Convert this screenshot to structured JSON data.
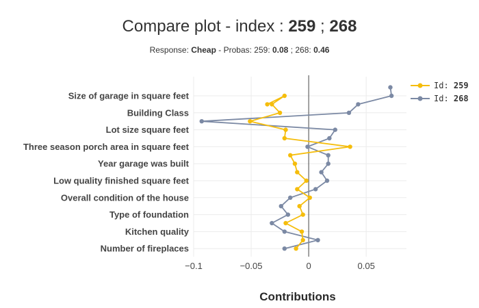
{
  "title": {
    "prefix": "Compare plot - index : ",
    "id_a": "259",
    "sep": " ; ",
    "id_b": "268"
  },
  "subtitle": {
    "response_label": "Response: ",
    "response_value": "Cheap",
    "probas_label": " - Probas: 259: ",
    "proba_a": "0.08",
    "probas_sep": " ; 268: ",
    "proba_b": "0.46"
  },
  "legend": {
    "prefix": "Id: ",
    "items": [
      "259",
      "268"
    ]
  },
  "colors": {
    "series_a": "#f5bd0c",
    "series_b": "#7b89a4",
    "grid": "#ebebeb",
    "zero_line": "#444444"
  },
  "chart_data": {
    "type": "line",
    "xlabel": "Contributions",
    "xlim": [
      -0.1,
      0.085
    ],
    "xticks": [
      -0.1,
      -0.05,
      0,
      0.05
    ],
    "xtick_labels": [
      "−0.1",
      "−0.05",
      "0",
      "0.05"
    ],
    "categories": [
      "Size of garage in square feet",
      "Building Class",
      "Lot size square feet",
      "Three season porch area in square feet",
      "Year garage was built",
      "Low quality finished square feet",
      "Overall condition of the house",
      "Type of foundation",
      "Kitchen quality",
      "Number of fireplaces"
    ],
    "series": [
      {
        "name": "259",
        "points": [
          {
            "x": -0.036,
            "y": 0.5
          },
          {
            "x": -0.021,
            "y": 0.0
          },
          {
            "x": -0.032,
            "y": 0.5
          },
          {
            "x": -0.025,
            "y": 1.0
          },
          {
            "x": -0.051,
            "y": 1.5
          },
          {
            "x": -0.02,
            "y": 2.0
          },
          {
            "x": -0.021,
            "y": 2.5
          },
          {
            "x": 0.036,
            "y": 3.0
          },
          {
            "x": -0.016,
            "y": 3.5
          },
          {
            "x": -0.012,
            "y": 4.0
          },
          {
            "x": -0.01,
            "y": 4.5
          },
          {
            "x": -0.002,
            "y": 5.0
          },
          {
            "x": -0.01,
            "y": 5.5
          },
          {
            "x": 0.001,
            "y": 6.0
          },
          {
            "x": -0.008,
            "y": 6.5
          },
          {
            "x": -0.005,
            "y": 7.0
          },
          {
            "x": -0.02,
            "y": 7.5
          },
          {
            "x": -0.006,
            "y": 8.0
          },
          {
            "x": -0.005,
            "y": 8.5
          },
          {
            "x": -0.011,
            "y": 9.0
          }
        ]
      },
      {
        "name": "268",
        "points": [
          {
            "x": 0.071,
            "y": -0.5
          },
          {
            "x": 0.072,
            "y": 0.0
          },
          {
            "x": 0.043,
            "y": 0.5
          },
          {
            "x": 0.035,
            "y": 1.0
          },
          {
            "x": -0.093,
            "y": 1.5
          },
          {
            "x": 0.023,
            "y": 2.0
          },
          {
            "x": 0.018,
            "y": 2.5
          },
          {
            "x": -0.001,
            "y": 3.0
          },
          {
            "x": 0.017,
            "y": 3.5
          },
          {
            "x": 0.017,
            "y": 4.0
          },
          {
            "x": 0.011,
            "y": 4.5
          },
          {
            "x": 0.016,
            "y": 5.0
          },
          {
            "x": 0.006,
            "y": 5.5
          },
          {
            "x": -0.016,
            "y": 6.0
          },
          {
            "x": -0.024,
            "y": 6.5
          },
          {
            "x": -0.018,
            "y": 7.0
          },
          {
            "x": -0.032,
            "y": 7.5
          },
          {
            "x": -0.021,
            "y": 8.0
          },
          {
            "x": 0.008,
            "y": 8.5
          },
          {
            "x": -0.021,
            "y": 9.0
          }
        ]
      }
    ]
  }
}
